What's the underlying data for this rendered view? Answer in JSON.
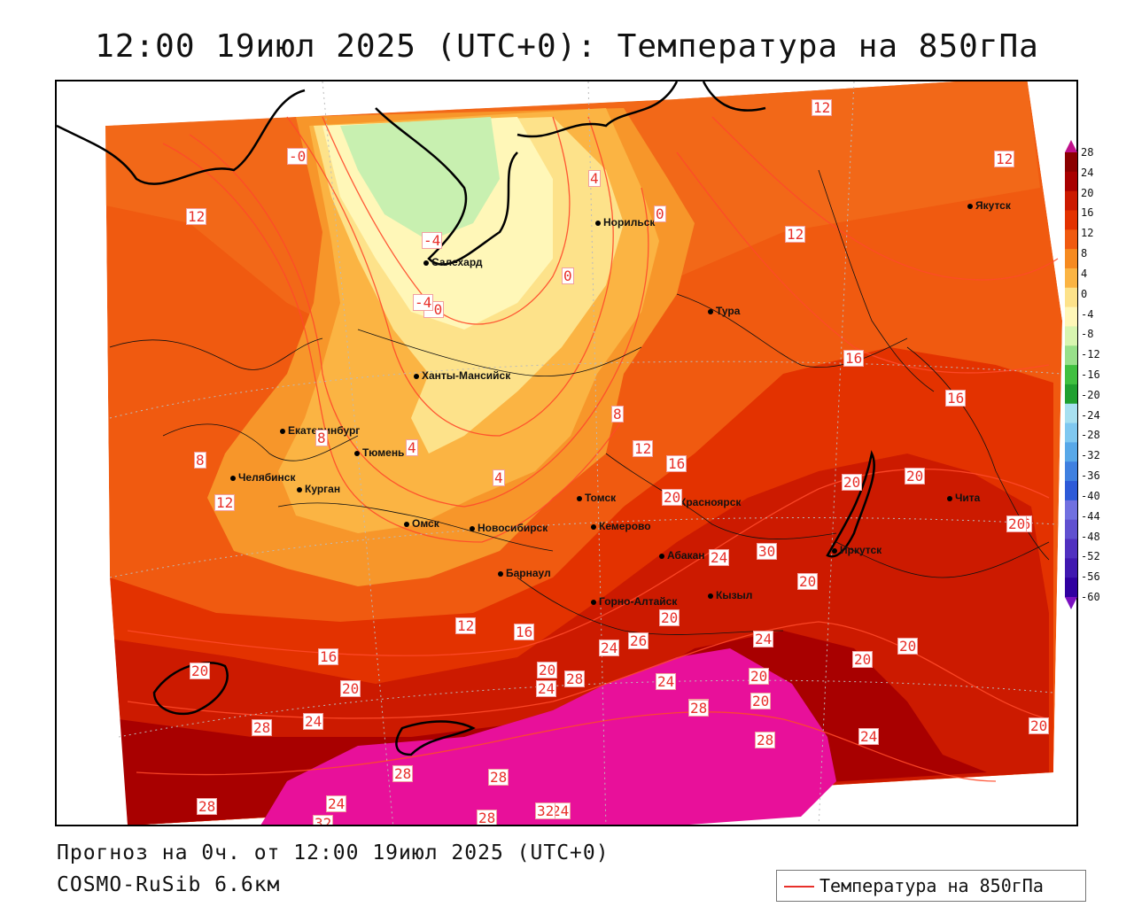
{
  "title": "12:00 19июл 2025 (UTC+0): Температура на 850гПа",
  "footer": {
    "forecast": "Прогноз на 0ч. от 12:00 19июл 2025 (UTC+0)",
    "model": "COSMO-RuSib 6.6км"
  },
  "legend": {
    "label": "Температура на 850гПа",
    "line_color": "#e8302a"
  },
  "colorbar": {
    "ticks": [
      "28",
      "24",
      "20",
      "16",
      "12",
      "8",
      "4",
      "0",
      "-4",
      "-8",
      "-12",
      "-16",
      "-20",
      "-24",
      "-28",
      "-32",
      "-36",
      "-40",
      "-44",
      "-48",
      "-52",
      "-56",
      "-60"
    ],
    "colors": [
      "#8b0000",
      "#a80000",
      "#cc1a00",
      "#e33200",
      "#f05a10",
      "#f68a20",
      "#fbb443",
      "#fde28a",
      "#fff7b8",
      "#d8f5b0",
      "#98e08a",
      "#40c040",
      "#20a030",
      "#a8e0f0",
      "#80c8f0",
      "#58a8e8",
      "#3f80e0",
      "#2d5ad8",
      "#7070e0",
      "#6050d0",
      "#5030c0",
      "#4018b0",
      "#3000a0"
    ],
    "top_arrow_color": "#c0108a",
    "bottom_arrow_color": "#7a10c0"
  },
  "cities": [
    {
      "name": "Салехард"
    },
    {
      "name": "Норильск"
    },
    {
      "name": "Якутск"
    },
    {
      "name": "Тура"
    },
    {
      "name": "Ханты-Мансийск"
    },
    {
      "name": "Екатеринбург"
    },
    {
      "name": "Тюмень"
    },
    {
      "name": "Челябинск"
    },
    {
      "name": "Курган"
    },
    {
      "name": "Омск"
    },
    {
      "name": "Новосибирск"
    },
    {
      "name": "Томск"
    },
    {
      "name": "Кемерово"
    },
    {
      "name": "Красноярск"
    },
    {
      "name": "Барнаул"
    },
    {
      "name": "Абакан"
    },
    {
      "name": "Иркутск"
    },
    {
      "name": "Чита"
    },
    {
      "name": "Горно-Алтайск"
    },
    {
      "name": "Кызыл"
    }
  ],
  "isotherm_labels": [
    "12",
    "12",
    "12",
    "12",
    "-0",
    "4",
    "-4",
    "-0",
    "0",
    "0",
    "16",
    "16",
    "8",
    "12",
    "16",
    "20",
    "20",
    "20",
    "8",
    "8",
    "4",
    "4",
    "12",
    "16",
    "20",
    "-4",
    "24",
    "30",
    "20",
    "16",
    "12",
    "20",
    "24",
    "20",
    "24",
    "26",
    "20",
    "20",
    "16",
    "24",
    "20",
    "20",
    "28",
    "28",
    "24",
    "20",
    "24",
    "28",
    "28",
    "24",
    "28",
    "24",
    "28",
    "28",
    "28",
    "32",
    "24",
    "32",
    "28",
    "20",
    "20"
  ]
}
